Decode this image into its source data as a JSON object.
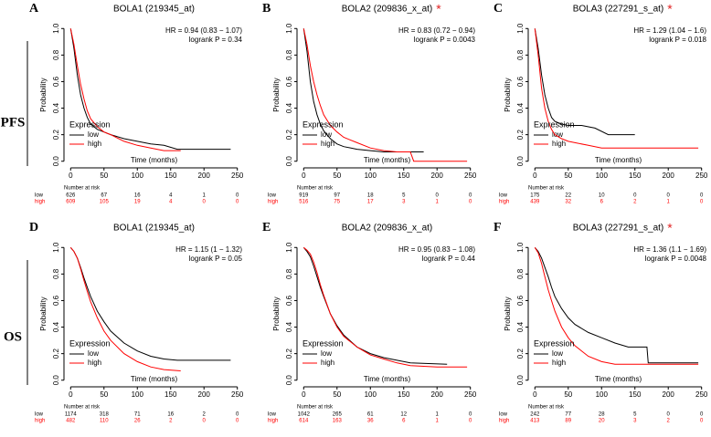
{
  "row_labels": [
    "PFS",
    "OS"
  ],
  "chart_data": [
    {
      "type": "line",
      "panel": "A",
      "title": "BOLA1 (219345_at)",
      "annotations": [
        "HR = 0.94 (0.83 − 1.07)",
        "logrank P = 0.34"
      ],
      "xlabel": "Time (months)",
      "ylabel": "Probability",
      "legend_title": "Expression",
      "xlim": [
        -10,
        260
      ],
      "xticks": [
        0,
        50,
        100,
        150,
        200,
        250
      ],
      "ylim": [
        -0.05,
        1.05
      ],
      "yticks": [
        {
          "value": 0,
          "label": "0.0"
        },
        0.2,
        0.4,
        0.6,
        0.8,
        {
          "value": 1,
          "label": "1.0"
        }
      ],
      "series": [
        {
          "name": "low",
          "color": "#000000",
          "x": [
            0,
            5,
            10,
            15,
            20,
            25,
            30,
            40,
            50,
            60,
            80,
            100,
            120,
            140,
            160,
            200,
            240
          ],
          "values": [
            1,
            0.85,
            0.65,
            0.5,
            0.4,
            0.33,
            0.28,
            0.24,
            0.22,
            0.2,
            0.17,
            0.15,
            0.13,
            0.12,
            0.09,
            0.09,
            0.09
          ]
        },
        {
          "name": "high",
          "color": "#ff0000",
          "x": [
            0,
            5,
            10,
            15,
            20,
            25,
            30,
            40,
            50,
            60,
            80,
            100,
            120,
            140,
            165
          ],
          "values": [
            1,
            0.88,
            0.72,
            0.58,
            0.47,
            0.38,
            0.32,
            0.26,
            0.22,
            0.2,
            0.15,
            0.12,
            0.1,
            0.08,
            0.08
          ]
        }
      ],
      "risk_table": {
        "title": "Number at risk",
        "rows": [
          {
            "name": "low",
            "values": [
              626,
              67,
              16,
              4,
              1,
              0
            ]
          },
          {
            "name": "high",
            "values": [
              609,
              105,
              19,
              4,
              0,
              0
            ]
          }
        ]
      }
    },
    {
      "type": "line",
      "panel": "B",
      "title": "BOLA2 (209836_x_at)",
      "title_mark": "*",
      "annotations": [
        "HR = 0.83 (0.72 − 0.94)",
        "logrank P = 0.0043"
      ],
      "xlabel": "Time (months)",
      "ylabel": "Probability",
      "legend_title": "Expression",
      "xlim": [
        -10,
        260
      ],
      "xticks": [
        0,
        50,
        100,
        150,
        200,
        250
      ],
      "ylim": [
        -0.05,
        1.05
      ],
      "yticks": [
        {
          "value": 0,
          "label": "0.0"
        },
        0.2,
        0.4,
        0.6,
        0.8,
        {
          "value": 1,
          "label": "1.0"
        }
      ],
      "series": [
        {
          "name": "low",
          "color": "#000000",
          "x": [
            0,
            5,
            10,
            15,
            20,
            25,
            30,
            40,
            50,
            60,
            80,
            100,
            120,
            140,
            160,
            180
          ],
          "values": [
            1,
            0.83,
            0.6,
            0.45,
            0.35,
            0.28,
            0.23,
            0.17,
            0.13,
            0.11,
            0.09,
            0.08,
            0.07,
            0.07,
            0.07,
            0.07
          ]
        },
        {
          "name": "high",
          "color": "#ff0000",
          "x": [
            0,
            5,
            10,
            15,
            20,
            25,
            30,
            40,
            50,
            60,
            80,
            100,
            120,
            140,
            160,
            165,
            245
          ],
          "values": [
            1,
            0.88,
            0.72,
            0.6,
            0.5,
            0.42,
            0.35,
            0.27,
            0.22,
            0.18,
            0.14,
            0.1,
            0.08,
            0.07,
            0.07,
            0,
            0
          ]
        }
      ],
      "risk_table": {
        "title": "Number at risk",
        "rows": [
          {
            "name": "low",
            "values": [
              919,
              97,
              18,
              5,
              0,
              0
            ]
          },
          {
            "name": "high",
            "values": [
              516,
              75,
              17,
              3,
              1,
              0
            ]
          }
        ]
      }
    },
    {
      "type": "line",
      "panel": "C",
      "title": "BOLA3 (227291_s_at)",
      "title_mark": "*",
      "annotations": [
        "HR = 1.29 (1.04 − 1.6)",
        "logrank P = 0.018"
      ],
      "xlabel": "Time (months)",
      "ylabel": "Probability",
      "legend_title": "Expression",
      "xlim": [
        -10,
        260
      ],
      "xticks": [
        0,
        50,
        100,
        150,
        200,
        250
      ],
      "ylim": [
        -0.05,
        1.05
      ],
      "yticks": [
        {
          "value": 0,
          "label": "0.0"
        },
        0.2,
        0.4,
        0.6,
        0.8,
        {
          "value": 1,
          "label": "1.0"
        }
      ],
      "series": [
        {
          "name": "low",
          "color": "#000000",
          "x": [
            0,
            5,
            10,
            15,
            20,
            25,
            30,
            40,
            50,
            70,
            90,
            110,
            150
          ],
          "values": [
            1,
            0.85,
            0.65,
            0.5,
            0.4,
            0.33,
            0.3,
            0.28,
            0.27,
            0.27,
            0.25,
            0.2,
            0.2
          ]
        },
        {
          "name": "high",
          "color": "#ff0000",
          "x": [
            0,
            5,
            10,
            15,
            20,
            25,
            30,
            40,
            50,
            60,
            80,
            100,
            150,
            245
          ],
          "values": [
            1,
            0.8,
            0.55,
            0.4,
            0.3,
            0.24,
            0.2,
            0.17,
            0.15,
            0.14,
            0.12,
            0.1,
            0.1,
            0.1
          ]
        }
      ],
      "risk_table": {
        "title": "Number at risk",
        "rows": [
          {
            "name": "low",
            "values": [
              175,
              22,
              10,
              0,
              0,
              0
            ]
          },
          {
            "name": "high",
            "values": [
              439,
              32,
              6,
              2,
              1,
              0
            ]
          }
        ]
      }
    },
    {
      "type": "line",
      "panel": "D",
      "title": "BOLA1 (219345_at)",
      "annotations": [
        "HR = 1.15 (1 − 1.32)",
        "logrank P = 0.05"
      ],
      "xlabel": "Time (months)",
      "ylabel": "Probability",
      "legend_title": "Expression",
      "xlim": [
        -10,
        260
      ],
      "xticks": [
        0,
        50,
        100,
        150,
        200,
        250
      ],
      "ylim": [
        -0.05,
        1.05
      ],
      "yticks": [
        {
          "value": 0,
          "label": "0.0"
        },
        0.2,
        0.4,
        0.6,
        0.8,
        {
          "value": 1,
          "label": "1.0"
        }
      ],
      "series": [
        {
          "name": "low",
          "color": "#000000",
          "x": [
            0,
            5,
            10,
            15,
            20,
            25,
            30,
            40,
            50,
            60,
            80,
            100,
            120,
            140,
            160,
            200,
            240
          ],
          "values": [
            1,
            0.97,
            0.92,
            0.85,
            0.77,
            0.7,
            0.63,
            0.52,
            0.44,
            0.37,
            0.28,
            0.22,
            0.18,
            0.16,
            0.15,
            0.15,
            0.15
          ]
        },
        {
          "name": "high",
          "color": "#ff0000",
          "x": [
            0,
            5,
            10,
            15,
            20,
            25,
            30,
            40,
            50,
            60,
            80,
            100,
            120,
            140,
            165
          ],
          "values": [
            1,
            0.97,
            0.92,
            0.84,
            0.75,
            0.67,
            0.59,
            0.47,
            0.37,
            0.3,
            0.2,
            0.14,
            0.1,
            0.08,
            0.07
          ]
        }
      ],
      "risk_table": {
        "title": "Number at risk",
        "rows": [
          {
            "name": "low",
            "values": [
              1174,
              318,
              71,
              16,
              2,
              0
            ]
          },
          {
            "name": "high",
            "values": [
              482,
              110,
              26,
              2,
              0,
              0
            ]
          }
        ]
      }
    },
    {
      "type": "line",
      "panel": "E",
      "title": "BOLA2 (209836_x_at)",
      "annotations": [
        "HR = 0.95 (0.83 − 1.08)",
        "logrank P = 0.44"
      ],
      "xlabel": "Time (months)",
      "ylabel": "Probability",
      "legend_title": "Expression",
      "xlim": [
        -10,
        260
      ],
      "xticks": [
        0,
        50,
        100,
        150,
        200,
        250
      ],
      "ylim": [
        -0.05,
        1.05
      ],
      "yticks": [
        {
          "value": 0,
          "label": "0.0"
        },
        0.2,
        0.4,
        0.6,
        0.8,
        {
          "value": 1,
          "label": "1.0"
        }
      ],
      "series": [
        {
          "name": "low",
          "color": "#000000",
          "x": [
            0,
            5,
            10,
            15,
            20,
            25,
            30,
            40,
            50,
            60,
            80,
            100,
            120,
            140,
            160,
            215
          ],
          "values": [
            1,
            0.97,
            0.93,
            0.86,
            0.78,
            0.7,
            0.63,
            0.5,
            0.41,
            0.34,
            0.25,
            0.2,
            0.17,
            0.15,
            0.13,
            0.12
          ]
        },
        {
          "name": "high",
          "color": "#ff0000",
          "x": [
            0,
            5,
            10,
            15,
            20,
            25,
            30,
            40,
            50,
            60,
            80,
            100,
            120,
            140,
            160,
            200,
            245
          ],
          "values": [
            1,
            0.98,
            0.95,
            0.89,
            0.81,
            0.72,
            0.64,
            0.5,
            0.4,
            0.33,
            0.25,
            0.19,
            0.16,
            0.13,
            0.11,
            0.1,
            0.1
          ]
        }
      ],
      "risk_table": {
        "title": "Number at risk",
        "rows": [
          {
            "name": "low",
            "values": [
              1042,
              265,
              61,
              12,
              1,
              0
            ]
          },
          {
            "name": "high",
            "values": [
              614,
              163,
              36,
              6,
              1,
              0
            ]
          }
        ]
      }
    },
    {
      "type": "line",
      "panel": "F",
      "title": "BOLA3 (227291_s_at)",
      "title_mark": "*",
      "annotations": [
        "HR = 1.36 (1.1 − 1.69)",
        "logrank P = 0.0048"
      ],
      "xlabel": "Time (months)",
      "ylabel": "Probability",
      "legend_title": "Expression",
      "xlim": [
        -10,
        260
      ],
      "xticks": [
        0,
        50,
        100,
        150,
        200,
        250
      ],
      "ylim": [
        -0.05,
        1.05
      ],
      "yticks": [
        {
          "value": 0,
          "label": "0.0"
        },
        0.2,
        0.4,
        0.6,
        0.8,
        {
          "value": 1,
          "label": "1.0"
        }
      ],
      "series": [
        {
          "name": "low",
          "color": "#000000",
          "x": [
            0,
            5,
            10,
            15,
            20,
            25,
            30,
            40,
            50,
            60,
            80,
            100,
            120,
            140,
            168,
            170,
            245
          ],
          "values": [
            1,
            0.97,
            0.92,
            0.85,
            0.78,
            0.7,
            0.63,
            0.54,
            0.47,
            0.42,
            0.36,
            0.32,
            0.28,
            0.25,
            0.25,
            0.13,
            0.13
          ]
        },
        {
          "name": "high",
          "color": "#ff0000",
          "x": [
            0,
            5,
            10,
            15,
            20,
            25,
            30,
            40,
            50,
            60,
            80,
            100,
            120,
            160,
            245
          ],
          "values": [
            1,
            0.96,
            0.88,
            0.78,
            0.68,
            0.6,
            0.52,
            0.4,
            0.32,
            0.26,
            0.18,
            0.14,
            0.12,
            0.12,
            0.12
          ]
        }
      ],
      "risk_table": {
        "title": "Number at risk",
        "rows": [
          {
            "name": "low",
            "values": [
              242,
              77,
              28,
              5,
              0,
              0
            ]
          },
          {
            "name": "high",
            "values": [
              413,
              89,
              20,
              3,
              2,
              0
            ]
          }
        ]
      }
    }
  ]
}
